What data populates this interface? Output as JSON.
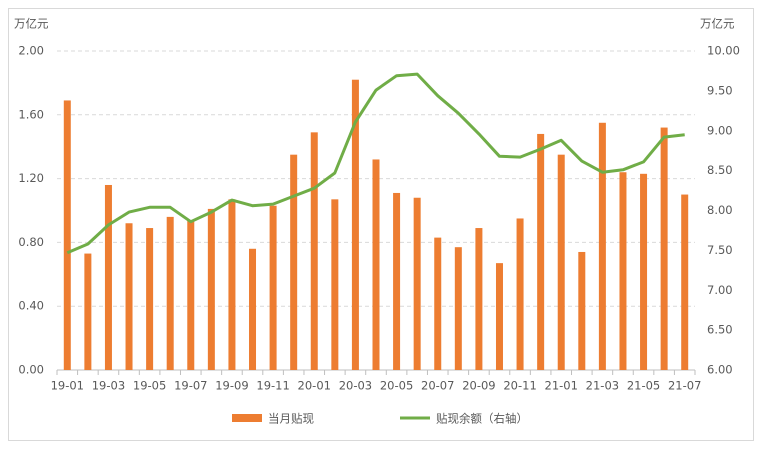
{
  "chart_data": {
    "type": "bar-line",
    "y_label": "万亿元",
    "y2_label": "万亿元",
    "categories": [
      "19-01",
      null,
      "19-03",
      null,
      "19-05",
      null,
      "19-07",
      null,
      "19-09",
      null,
      "19-11",
      null,
      "20-01",
      null,
      "20-03",
      null,
      "20-05",
      null,
      "20-07",
      null,
      "20-09",
      null,
      "20-11",
      null,
      "21-01",
      null,
      "21-03",
      null,
      "21-05",
      null,
      "21-07"
    ],
    "series": [
      {
        "name": "当月贴现",
        "type": "bar",
        "color": "#ed7d31",
        "values": [
          1.69,
          0.73,
          1.16,
          0.92,
          0.89,
          0.96,
          0.94,
          1.01,
          1.07,
          0.76,
          1.03,
          1.35,
          1.49,
          1.07,
          1.82,
          1.32,
          1.11,
          1.08,
          0.83,
          0.77,
          0.89,
          0.67,
          0.95,
          1.48,
          1.35,
          0.74,
          1.55,
          1.24,
          1.23,
          1.52,
          1.1
        ]
      },
      {
        "name": "贴现余额（右轴）",
        "type": "line",
        "axis": "y2",
        "color": "#70ad47",
        "values": [
          7.47,
          7.58,
          7.82,
          7.98,
          8.04,
          8.04,
          7.86,
          7.98,
          8.13,
          8.06,
          8.08,
          8.18,
          8.28,
          8.47,
          9.11,
          9.51,
          9.69,
          9.71,
          9.44,
          9.22,
          8.96,
          8.68,
          8.67,
          8.77,
          8.88,
          8.62,
          8.48,
          8.51,
          8.61,
          8.92,
          8.95
        ]
      }
    ],
    "ylim": [
      0,
      2
    ],
    "yticks": [
      {
        "value": 0,
        "label": "0.00"
      },
      {
        "value": 0.4,
        "label": "0.40"
      },
      {
        "value": 0.8,
        "label": "0.80"
      },
      {
        "value": 1.2,
        "label": "1.20"
      },
      {
        "value": 1.6,
        "label": "1.60"
      },
      {
        "value": 2,
        "label": "2.00"
      }
    ],
    "y2lim": [
      6,
      10
    ],
    "y2ticks": [
      {
        "value": 6,
        "label": "6.00"
      },
      {
        "value": 6.5,
        "label": "6.50"
      },
      {
        "value": 7,
        "label": "7.00"
      },
      {
        "value": 7.5,
        "label": "7.50"
      },
      {
        "value": 8,
        "label": "8.00"
      },
      {
        "value": 8.5,
        "label": "8.50"
      },
      {
        "value": 9,
        "label": "9.00"
      },
      {
        "value": 9.5,
        "label": "9.50"
      },
      {
        "value": 10,
        "label": "10.00"
      }
    ],
    "grid": true,
    "legend": "bottom"
  }
}
